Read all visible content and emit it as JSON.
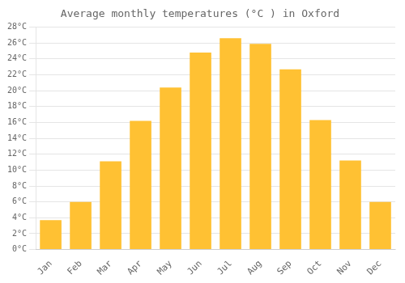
{
  "chart_data": {
    "type": "bar",
    "title": "Average monthly temperatures (°C ) in Oxford",
    "categories": [
      "Jan",
      "Feb",
      "Mar",
      "Apr",
      "May",
      "Jun",
      "Jul",
      "Aug",
      "Sep",
      "Oct",
      "Nov",
      "Dec"
    ],
    "values": [
      3.7,
      6.0,
      11.1,
      16.2,
      20.4,
      24.8,
      26.6,
      25.9,
      22.7,
      16.3,
      11.2,
      6.0
    ],
    "color": "#FFC133",
    "ylim": [
      0,
      28
    ],
    "yticks": [
      {
        "value": 0,
        "label": "0°C"
      },
      {
        "value": 2,
        "label": "2°C"
      },
      {
        "value": 4,
        "label": "4°C"
      },
      {
        "value": 6,
        "label": "6°C"
      },
      {
        "value": 8,
        "label": "8°C"
      },
      {
        "value": 10,
        "label": "10°C"
      },
      {
        "value": 12,
        "label": "12°C"
      },
      {
        "value": 14,
        "label": "14°C"
      },
      {
        "value": 16,
        "label": "16°C"
      },
      {
        "value": 18,
        "label": "18°C"
      },
      {
        "value": 20,
        "label": "20°C"
      },
      {
        "value": 22,
        "label": "22°C"
      },
      {
        "value": 24,
        "label": "24°C"
      },
      {
        "value": 26,
        "label": "26°C"
      },
      {
        "value": 28,
        "label": "28°C"
      }
    ],
    "grid": true
  }
}
